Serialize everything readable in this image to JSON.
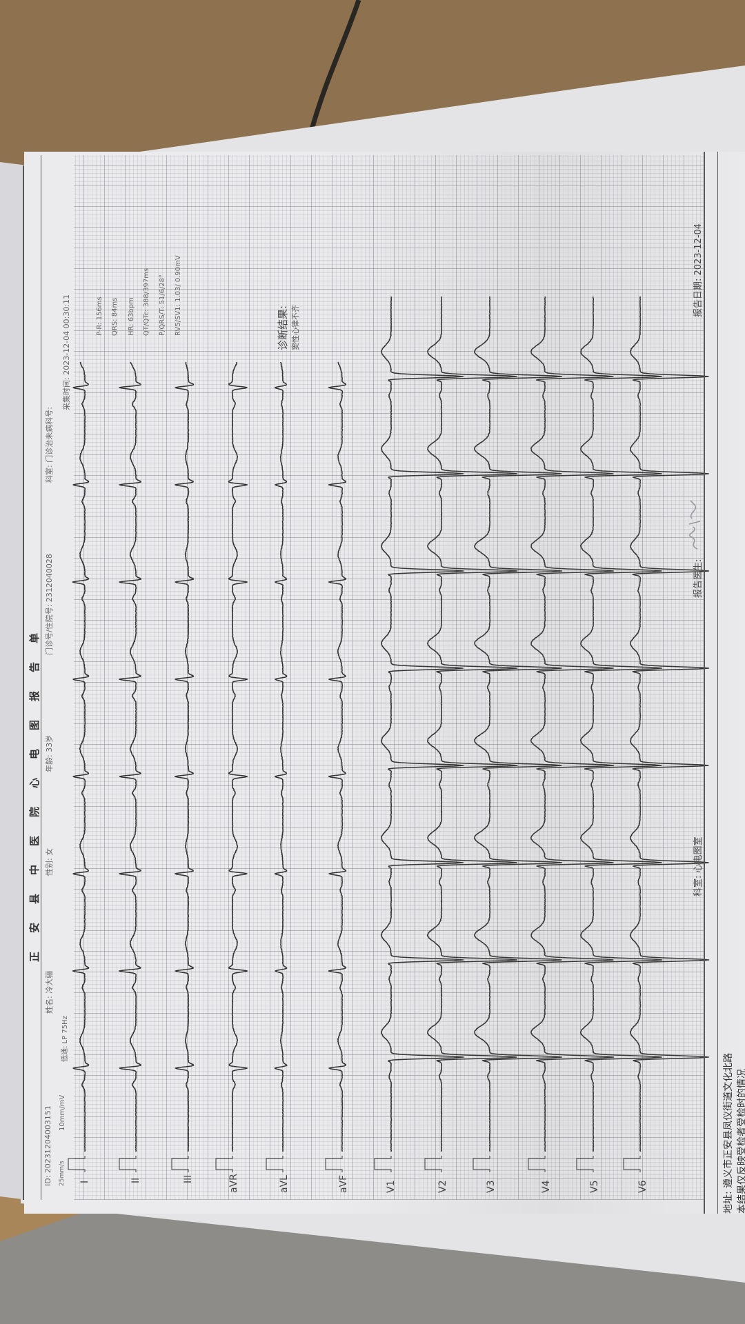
{
  "colors": {
    "trace": "#333333",
    "paper": "#ebebed",
    "grid": "#9696a0",
    "table": "#8e7250",
    "floor": "#8d8c88"
  },
  "report": {
    "title": "正安县中医院心电图报告单",
    "patient": {
      "id": "ID: 20231204003151",
      "name": "姓名: 冷大骊",
      "gender": "性别: 女",
      "age": "年龄: 33岁",
      "clinic_no": "门诊号/住院号: 2312040028",
      "department": "科室: 门诊治未病科号:"
    },
    "settings": {
      "speed": "25mm/s",
      "gain": "10mm/mV",
      "filter": "低通: LP 75Hz",
      "collect_time": "采集时间: 2023-12-04 00:30:11"
    },
    "measurements": [
      "P-R: 156ms",
      "QRS: 84ms",
      "HR: 63bpm",
      "QT/QTc: 388/397ms",
      "P/QRS/T: 51/6/28°",
      "RV5/SV1: 1.03/ 0.90mV"
    ],
    "diagnosis": {
      "label": "诊断结果:",
      "result": "窦性心律不齐"
    },
    "leads": [
      "I",
      "II",
      "III",
      "aVR",
      "aVL",
      "aVF",
      "V1",
      "V2",
      "V3",
      "V4",
      "V5",
      "V6"
    ],
    "footer": {
      "department": "科室: 心电图室",
      "doctor_label": "报告医生:",
      "signature": "签名",
      "report_date": "报告日期: 2023-12-04",
      "address": "地址: 遵义市正安县凤仪街道文化北路",
      "disclaimer": "本结果仅反映受检者受检时的情况"
    }
  }
}
